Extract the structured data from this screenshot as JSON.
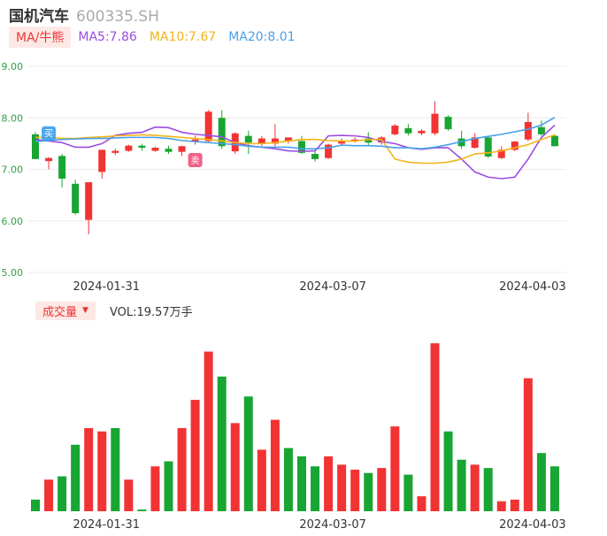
{
  "header": {
    "name": "国机汽车",
    "code": "600335.SH"
  },
  "ma_legend": {
    "tag": "MA/牛熊",
    "items": [
      {
        "label": "MA5:7.86",
        "color": "#9b4de0"
      },
      {
        "label": "MA10:7.67",
        "color": "#f2b418"
      },
      {
        "label": "MA20:8.01",
        "color": "#4a9fe8"
      }
    ]
  },
  "volume_legend": {
    "tag": "成交量",
    "arrow": "▼",
    "text": "VOL:19.57万手"
  },
  "markers": {
    "buy": "买",
    "sell": "卖"
  },
  "colors": {
    "up": "#f23333",
    "down": "#18a533",
    "grid": "#ececec",
    "axis_text": "#2ea043"
  },
  "chart_data": [
    {
      "type": "candlestick",
      "y_ticks": [
        "9.00",
        "8.00",
        "7.00",
        "6.00",
        "5.00"
      ],
      "ylim": [
        5.0,
        9.0
      ],
      "x_tick_labels": [
        {
          "label": "2024-01-31",
          "index": 5
        },
        {
          "label": "2024-03-07",
          "index": 22
        },
        {
          "label": "2024-04-03",
          "index": 37
        }
      ],
      "candles": [
        {
          "o": 7.68,
          "h": 7.72,
          "l": 7.2,
          "c": 7.2
        },
        {
          "o": 7.16,
          "h": 7.24,
          "l": 7.0,
          "c": 7.22
        },
        {
          "o": 7.26,
          "h": 7.3,
          "l": 6.65,
          "c": 6.82
        },
        {
          "o": 6.72,
          "h": 6.8,
          "l": 6.12,
          "c": 6.15
        },
        {
          "o": 6.02,
          "h": 6.75,
          "l": 5.74,
          "c": 6.75
        },
        {
          "o": 6.95,
          "h": 7.38,
          "l": 6.82,
          "c": 7.38
        },
        {
          "o": 7.32,
          "h": 7.4,
          "l": 7.28,
          "c": 7.36
        },
        {
          "o": 7.36,
          "h": 7.48,
          "l": 7.34,
          "c": 7.46
        },
        {
          "o": 7.46,
          "h": 7.5,
          "l": 7.36,
          "c": 7.42
        },
        {
          "o": 7.36,
          "h": 7.44,
          "l": 7.34,
          "c": 7.42
        },
        {
          "o": 7.4,
          "h": 7.46,
          "l": 7.3,
          "c": 7.34
        },
        {
          "o": 7.34,
          "h": 7.46,
          "l": 7.26,
          "c": 7.45
        },
        {
          "o": 7.55,
          "h": 7.65,
          "l": 7.48,
          "c": 7.58
        },
        {
          "o": 7.55,
          "h": 8.15,
          "l": 7.52,
          "c": 8.12
        },
        {
          "o": 8.0,
          "h": 8.15,
          "l": 7.4,
          "c": 7.45
        },
        {
          "o": 7.35,
          "h": 7.72,
          "l": 7.3,
          "c": 7.7
        },
        {
          "o": 7.65,
          "h": 7.75,
          "l": 7.3,
          "c": 7.52
        },
        {
          "o": 7.5,
          "h": 7.65,
          "l": 7.45,
          "c": 7.6
        },
        {
          "o": 7.5,
          "h": 7.88,
          "l": 7.45,
          "c": 7.6
        },
        {
          "o": 7.55,
          "h": 7.62,
          "l": 7.5,
          "c": 7.62
        },
        {
          "o": 7.55,
          "h": 7.65,
          "l": 7.3,
          "c": 7.32
        },
        {
          "o": 7.3,
          "h": 7.35,
          "l": 7.15,
          "c": 7.2
        },
        {
          "o": 7.22,
          "h": 7.5,
          "l": 7.2,
          "c": 7.48
        },
        {
          "o": 7.5,
          "h": 7.6,
          "l": 7.48,
          "c": 7.56
        },
        {
          "o": 7.55,
          "h": 7.62,
          "l": 7.52,
          "c": 7.58
        },
        {
          "o": 7.6,
          "h": 7.72,
          "l": 7.45,
          "c": 7.52
        },
        {
          "o": 7.52,
          "h": 7.65,
          "l": 7.48,
          "c": 7.62
        },
        {
          "o": 7.68,
          "h": 7.88,
          "l": 7.66,
          "c": 7.85
        },
        {
          "o": 7.8,
          "h": 7.88,
          "l": 7.66,
          "c": 7.7
        },
        {
          "o": 7.7,
          "h": 7.78,
          "l": 7.66,
          "c": 7.75
        },
        {
          "o": 7.7,
          "h": 8.32,
          "l": 7.66,
          "c": 8.08
        },
        {
          "o": 8.02,
          "h": 8.05,
          "l": 7.75,
          "c": 7.78
        },
        {
          "o": 7.6,
          "h": 7.75,
          "l": 7.4,
          "c": 7.45
        },
        {
          "o": 7.42,
          "h": 7.7,
          "l": 7.4,
          "c": 7.62
        },
        {
          "o": 7.62,
          "h": 7.65,
          "l": 7.22,
          "c": 7.25
        },
        {
          "o": 7.22,
          "h": 7.45,
          "l": 7.2,
          "c": 7.38
        },
        {
          "o": 7.38,
          "h": 7.55,
          "l": 7.35,
          "c": 7.54
        },
        {
          "o": 7.58,
          "h": 8.1,
          "l": 7.55,
          "c": 7.92
        },
        {
          "o": 7.82,
          "h": 7.95,
          "l": 7.65,
          "c": 7.68
        },
        {
          "o": 7.65,
          "h": 7.68,
          "l": 7.45,
          "c": 7.45
        }
      ],
      "series": [
        {
          "name": "MA5",
          "color": "#9b4de0",
          "values": [
            7.58,
            7.55,
            7.52,
            7.43,
            7.43,
            7.5,
            7.66,
            7.7,
            7.72,
            7.82,
            7.81,
            7.72,
            7.68,
            7.66,
            7.63,
            7.52,
            7.46,
            7.43,
            7.4,
            7.36,
            7.35,
            7.36,
            7.65,
            7.66,
            7.65,
            7.62,
            7.54,
            7.5,
            7.42,
            7.39,
            7.42,
            7.42,
            7.2,
            6.95,
            6.85,
            6.82,
            6.85,
            7.2,
            7.62,
            7.86
          ]
        },
        {
          "name": "MA10",
          "color": "#f2b418",
          "values": [
            7.62,
            7.62,
            7.6,
            7.6,
            7.62,
            7.63,
            7.65,
            7.66,
            7.67,
            7.66,
            7.64,
            7.62,
            7.6,
            7.58,
            7.55,
            7.52,
            7.5,
            7.5,
            7.52,
            7.55,
            7.58,
            7.58,
            7.56,
            7.55,
            7.55,
            7.58,
            7.58,
            7.2,
            7.14,
            7.12,
            7.12,
            7.14,
            7.2,
            7.3,
            7.32,
            7.36,
            7.42,
            7.48,
            7.58,
            7.67
          ]
        },
        {
          "name": "MA20",
          "color": "#4a9fe8",
          "values": [
            7.54,
            7.56,
            7.58,
            7.59,
            7.6,
            7.6,
            7.61,
            7.62,
            7.62,
            7.62,
            7.6,
            7.56,
            7.54,
            7.52,
            7.5,
            7.48,
            7.45,
            7.43,
            7.43,
            7.43,
            7.4,
            7.4,
            7.42,
            7.47,
            7.46,
            7.46,
            7.45,
            7.42,
            7.42,
            7.4,
            7.43,
            7.48,
            7.54,
            7.6,
            7.64,
            7.68,
            7.73,
            7.78,
            7.86,
            8.01
          ]
        }
      ]
    },
    {
      "type": "bar",
      "name": "VOL",
      "max": 100,
      "values": [
        {
          "v": 7,
          "dir": "down"
        },
        {
          "v": 19,
          "dir": "up"
        },
        {
          "v": 21,
          "dir": "down"
        },
        {
          "v": 40,
          "dir": "down"
        },
        {
          "v": 50,
          "dir": "up"
        },
        {
          "v": 48,
          "dir": "up"
        },
        {
          "v": 50,
          "dir": "down"
        },
        {
          "v": 19,
          "dir": "up"
        },
        {
          "v": 1,
          "dir": "down"
        },
        {
          "v": 27,
          "dir": "up"
        },
        {
          "v": 30,
          "dir": "down"
        },
        {
          "v": 50,
          "dir": "up"
        },
        {
          "v": 67,
          "dir": "up"
        },
        {
          "v": 96,
          "dir": "up"
        },
        {
          "v": 81,
          "dir": "down"
        },
        {
          "v": 53,
          "dir": "up"
        },
        {
          "v": 69,
          "dir": "down"
        },
        {
          "v": 37,
          "dir": "up"
        },
        {
          "v": 55,
          "dir": "up"
        },
        {
          "v": 38,
          "dir": "down"
        },
        {
          "v": 33,
          "dir": "down"
        },
        {
          "v": 27,
          "dir": "down"
        },
        {
          "v": 33,
          "dir": "up"
        },
        {
          "v": 28,
          "dir": "up"
        },
        {
          "v": 25,
          "dir": "up"
        },
        {
          "v": 23,
          "dir": "down"
        },
        {
          "v": 26,
          "dir": "up"
        },
        {
          "v": 51,
          "dir": "up"
        },
        {
          "v": 22,
          "dir": "down"
        },
        {
          "v": 9,
          "dir": "up"
        },
        {
          "v": 101,
          "dir": "up"
        },
        {
          "v": 48,
          "dir": "down"
        },
        {
          "v": 31,
          "dir": "down"
        },
        {
          "v": 28,
          "dir": "up"
        },
        {
          "v": 26,
          "dir": "down"
        },
        {
          "v": 6,
          "dir": "up"
        },
        {
          "v": 7,
          "dir": "up"
        },
        {
          "v": 80,
          "dir": "up"
        },
        {
          "v": 35,
          "dir": "down"
        },
        {
          "v": 27,
          "dir": "down"
        }
      ]
    }
  ]
}
